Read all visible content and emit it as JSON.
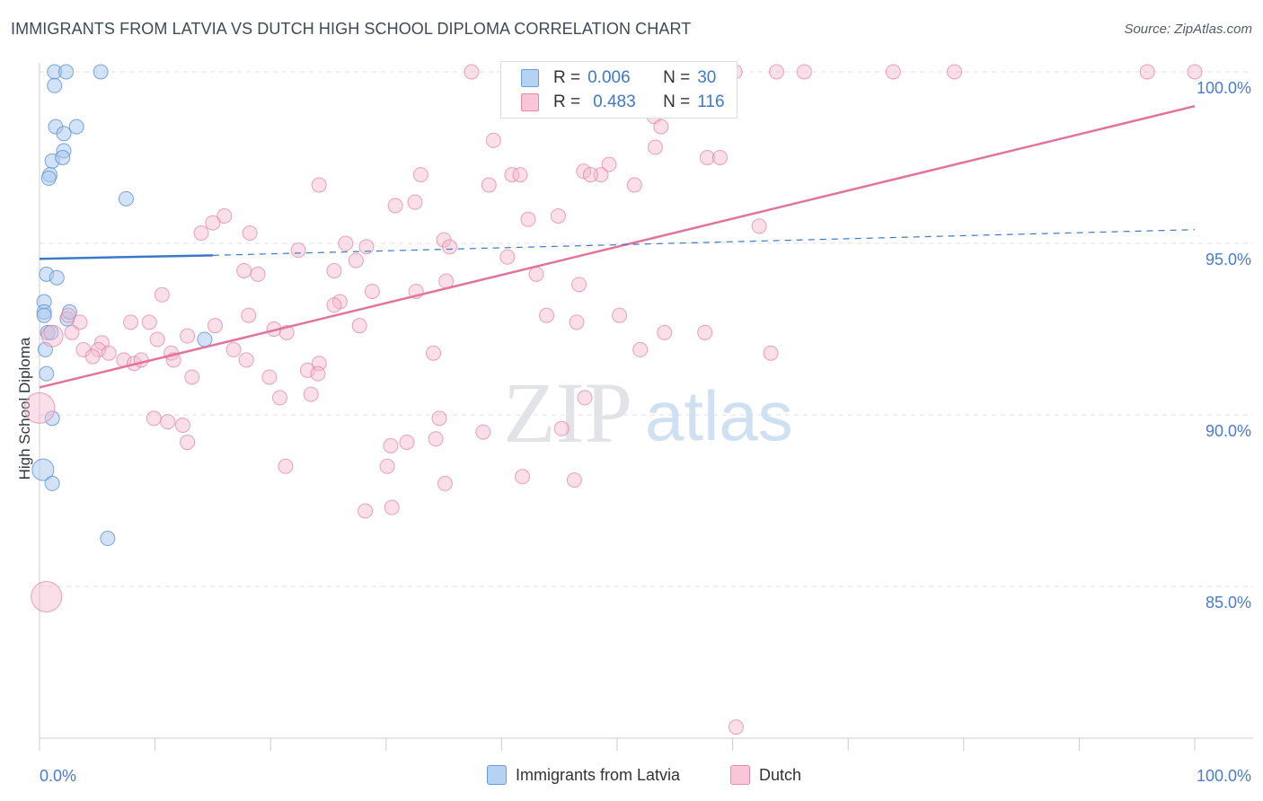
{
  "title": "IMMIGRANTS FROM LATVIA VS DUTCH HIGH SCHOOL DIPLOMA CORRELATION CHART",
  "source": "Source: ZipAtlas.com",
  "watermark": {
    "zip": "ZIP",
    "atlas": "atlas"
  },
  "legend": {
    "r_label": "R =",
    "n_label": "N =",
    "rows": [
      {
        "r": "0.006",
        "n": "30"
      },
      {
        "r": "0.483",
        "n": "116"
      }
    ]
  },
  "colors": {
    "blue_fill": "#a8c8ef",
    "blue_stroke": "#5b8fd6",
    "blue_line": "#3a78c9",
    "pink_fill": "#f5b8cc",
    "pink_stroke": "#e07d9f",
    "pink_line": "#e4739b",
    "axis_text": "#4a7bd0",
    "grid": "#dcdfe4"
  },
  "chart_data": {
    "type": "scatter",
    "title": "IMMIGRANTS FROM LATVIA VS DUTCH HIGH SCHOOL DIPLOMA CORRELATION CHART",
    "xlabel": "",
    "ylabel": "High School Diploma",
    "xlim": [
      0,
      100
    ],
    "ylim": [
      80.5,
      100.9
    ],
    "x_tick_labels": [
      "0.0%",
      "100.0%"
    ],
    "y_ticks": [
      85,
      90,
      95,
      100
    ],
    "y_tick_labels": [
      "85.0%",
      "90.0%",
      "95.0%",
      "100.0%"
    ],
    "series": [
      {
        "name": "Immigrants from Latvia",
        "color": "blue",
        "r": 0.006,
        "n": 30,
        "trend_solid": [
          [
            0,
            94.55
          ],
          [
            15,
            94.65
          ]
        ],
        "trend_dashed": [
          [
            15,
            94.65
          ],
          [
            100,
            95.4
          ]
        ],
        "points": [
          [
            1.3,
            100.0,
            1
          ],
          [
            5.3,
            100.0,
            1
          ],
          [
            2.3,
            100.0,
            1
          ],
          [
            1.3,
            99.6,
            1
          ],
          [
            1.4,
            98.4,
            1
          ],
          [
            3.2,
            98.4,
            1
          ],
          [
            2.1,
            98.2,
            1
          ],
          [
            2.1,
            97.7,
            1
          ],
          [
            1.1,
            97.4,
            1
          ],
          [
            2.0,
            97.5,
            1
          ],
          [
            0.9,
            97.0,
            1
          ],
          [
            0.8,
            96.9,
            1
          ],
          [
            7.5,
            96.3,
            1
          ],
          [
            0.6,
            94.1,
            1
          ],
          [
            1.5,
            94.0,
            1
          ],
          [
            0.4,
            93.3,
            1
          ],
          [
            0.4,
            93.0,
            1
          ],
          [
            0.4,
            92.9,
            1
          ],
          [
            2.4,
            92.8,
            1
          ],
          [
            2.6,
            93.0,
            1
          ],
          [
            0.7,
            92.4,
            1
          ],
          [
            1.0,
            92.4,
            1
          ],
          [
            0.5,
            91.9,
            1
          ],
          [
            0.6,
            91.2,
            1
          ],
          [
            14.3,
            92.2,
            1
          ],
          [
            1.1,
            89.9,
            1
          ],
          [
            0.3,
            88.4,
            2
          ],
          [
            1.1,
            88.0,
            1
          ],
          [
            5.9,
            86.4,
            1
          ]
        ]
      },
      {
        "name": "Dutch",
        "color": "pink",
        "r": 0.483,
        "n": 116,
        "trend": [
          [
            0,
            90.8
          ],
          [
            100,
            99.0
          ]
        ],
        "points": [
          [
            37.4,
            100.0,
            1
          ],
          [
            52.0,
            100.0,
            1
          ],
          [
            60.2,
            100.0,
            1
          ],
          [
            63.8,
            100.0,
            1
          ],
          [
            66.2,
            100.0,
            1
          ],
          [
            73.9,
            100.0,
            1
          ],
          [
            79.2,
            100.0,
            1
          ],
          [
            95.9,
            100.0,
            1
          ],
          [
            100.0,
            100.0,
            1
          ],
          [
            39.3,
            98.0,
            1
          ],
          [
            53.2,
            98.7,
            1
          ],
          [
            53.8,
            98.4,
            1
          ],
          [
            53.3,
            97.8,
            1
          ],
          [
            49.3,
            97.3,
            1
          ],
          [
            47.1,
            97.1,
            1
          ],
          [
            48.6,
            97.0,
            1
          ],
          [
            40.9,
            97.0,
            1
          ],
          [
            41.6,
            97.0,
            1
          ],
          [
            47.7,
            97.0,
            1
          ],
          [
            57.8,
            97.5,
            1
          ],
          [
            58.9,
            97.5,
            1
          ],
          [
            33.0,
            97.0,
            1
          ],
          [
            24.2,
            96.7,
            1
          ],
          [
            38.9,
            96.7,
            1
          ],
          [
            51.5,
            96.7,
            1
          ],
          [
            32.5,
            96.2,
            1
          ],
          [
            30.8,
            96.1,
            1
          ],
          [
            42.3,
            95.7,
            1
          ],
          [
            44.9,
            95.8,
            1
          ],
          [
            16.0,
            95.8,
            1
          ],
          [
            15.0,
            95.6,
            1
          ],
          [
            14.0,
            95.3,
            1
          ],
          [
            18.2,
            95.3,
            1
          ],
          [
            62.3,
            95.5,
            1
          ],
          [
            26.5,
            95.0,
            1
          ],
          [
            22.4,
            94.8,
            1
          ],
          [
            28.3,
            94.9,
            1
          ],
          [
            35.0,
            95.1,
            1
          ],
          [
            35.5,
            94.9,
            1
          ],
          [
            40.5,
            94.6,
            1
          ],
          [
            27.4,
            94.5,
            1
          ],
          [
            17.7,
            94.2,
            1
          ],
          [
            18.9,
            94.1,
            1
          ],
          [
            25.5,
            94.2,
            1
          ],
          [
            43.0,
            94.1,
            1
          ],
          [
            35.2,
            93.9,
            1
          ],
          [
            46.7,
            93.8,
            1
          ],
          [
            32.6,
            93.6,
            1
          ],
          [
            28.8,
            93.6,
            1
          ],
          [
            10.6,
            93.5,
            1
          ],
          [
            26.0,
            93.3,
            1
          ],
          [
            25.5,
            93.2,
            1
          ],
          [
            2.5,
            92.9,
            1
          ],
          [
            18.1,
            92.9,
            1
          ],
          [
            43.9,
            92.9,
            1
          ],
          [
            50.2,
            92.9,
            1
          ],
          [
            3.5,
            92.7,
            1
          ],
          [
            7.9,
            92.7,
            1
          ],
          [
            9.5,
            92.7,
            1
          ],
          [
            15.2,
            92.6,
            1
          ],
          [
            20.3,
            92.5,
            1
          ],
          [
            27.7,
            92.6,
            1
          ],
          [
            46.5,
            92.7,
            1
          ],
          [
            1.1,
            92.3,
            2
          ],
          [
            2.8,
            92.4,
            1
          ],
          [
            10.2,
            92.2,
            1
          ],
          [
            12.8,
            92.3,
            1
          ],
          [
            21.4,
            92.4,
            1
          ],
          [
            54.1,
            92.4,
            1
          ],
          [
            57.6,
            92.4,
            1
          ],
          [
            5.4,
            92.1,
            1
          ],
          [
            3.8,
            91.9,
            1
          ],
          [
            5.1,
            91.9,
            1
          ],
          [
            6.0,
            91.8,
            1
          ],
          [
            11.4,
            91.8,
            1
          ],
          [
            16.8,
            91.9,
            1
          ],
          [
            4.6,
            91.7,
            1
          ],
          [
            7.3,
            91.6,
            1
          ],
          [
            8.2,
            91.5,
            1
          ],
          [
            8.8,
            91.6,
            1
          ],
          [
            11.6,
            91.6,
            1
          ],
          [
            17.9,
            91.6,
            1
          ],
          [
            24.2,
            91.5,
            1
          ],
          [
            34.1,
            91.8,
            1
          ],
          [
            52.0,
            91.9,
            1
          ],
          [
            63.3,
            91.8,
            1
          ],
          [
            0.0,
            90.2,
            3
          ],
          [
            13.2,
            91.1,
            1
          ],
          [
            19.9,
            91.1,
            1
          ],
          [
            23.2,
            91.3,
            1
          ],
          [
            24.1,
            91.2,
            1
          ],
          [
            20.8,
            90.5,
            1
          ],
          [
            23.5,
            90.6,
            1
          ],
          [
            47.2,
            90.5,
            1
          ],
          [
            9.9,
            89.9,
            1
          ],
          [
            11.1,
            89.8,
            1
          ],
          [
            12.4,
            89.7,
            1
          ],
          [
            34.6,
            89.9,
            1
          ],
          [
            12.8,
            89.2,
            1
          ],
          [
            38.4,
            89.5,
            1
          ],
          [
            30.4,
            89.1,
            1
          ],
          [
            31.8,
            89.2,
            1
          ],
          [
            34.3,
            89.3,
            1
          ],
          [
            45.2,
            89.6,
            1
          ],
          [
            21.3,
            88.5,
            1
          ],
          [
            30.1,
            88.5,
            1
          ],
          [
            35.1,
            88.0,
            1
          ],
          [
            41.8,
            88.2,
            1
          ],
          [
            46.3,
            88.1,
            1
          ],
          [
            28.2,
            87.2,
            1
          ],
          [
            30.5,
            87.3,
            1
          ],
          [
            0.6,
            84.7,
            3
          ],
          [
            60.3,
            80.9,
            1
          ]
        ]
      }
    ]
  },
  "bottom_legend": [
    {
      "label": "Immigrants from Latvia"
    },
    {
      "label": "Dutch"
    }
  ]
}
